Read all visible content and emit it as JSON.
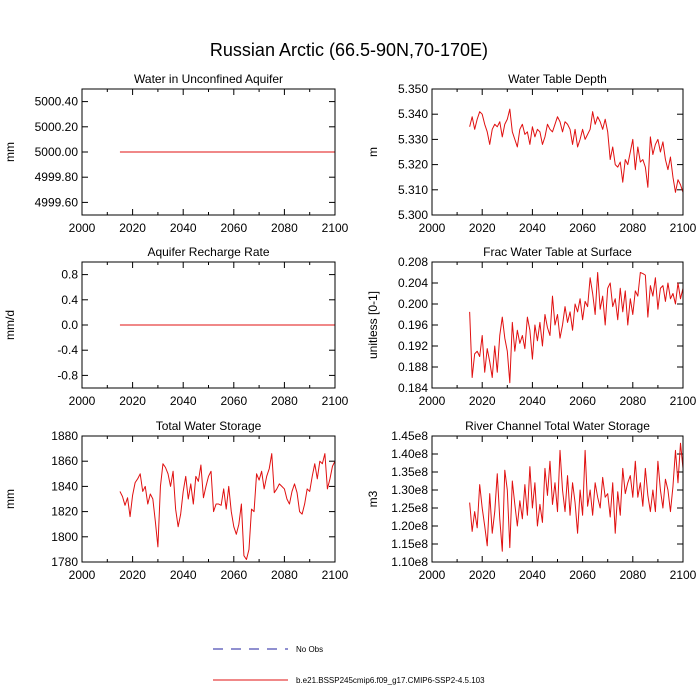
{
  "figure": {
    "title": "Russian Arctic (66.5-90N,70-170E)"
  },
  "legend": {
    "items": [
      {
        "label": "No Obs",
        "style": "dashed",
        "color": "#2020a0"
      },
      {
        "label": "b.e21.BSSP245cmip6.f09_g17.CMIP6-SSP2-4.5.103",
        "style": "solid",
        "color": "#e01010"
      }
    ]
  },
  "chart_data": [
    {
      "type": "line",
      "title": "Water in Unconfined Aquifer",
      "xlabel": "",
      "ylabel": "mm",
      "xlim": [
        2000,
        2100
      ],
      "ylim": [
        4999.5,
        5000.5
      ],
      "xticks": [
        2000,
        2020,
        2040,
        2060,
        2080,
        2100
      ],
      "yticks": [
        4999.6,
        4999.8,
        5000.0,
        5000.2,
        5000.4
      ],
      "ytick_labels": [
        "4999.60",
        "4999.80",
        "5000.00",
        "5000.20",
        "5000.40"
      ],
      "series": [
        {
          "name": "b.e21.BSSP245cmip6.f09_g17.CMIP6-SSP2-4.5.103",
          "color": "#e01010",
          "x_start": 2015,
          "x_step": 1,
          "y": [
            5000,
            5000,
            5000,
            5000,
            5000,
            5000,
            5000,
            5000,
            5000,
            5000,
            5000,
            5000,
            5000,
            5000,
            5000,
            5000,
            5000,
            5000,
            5000,
            5000,
            5000,
            5000,
            5000,
            5000,
            5000,
            5000,
            5000,
            5000,
            5000,
            5000,
            5000,
            5000,
            5000,
            5000,
            5000,
            5000,
            5000,
            5000,
            5000,
            5000,
            5000,
            5000,
            5000,
            5000,
            5000,
            5000,
            5000,
            5000,
            5000,
            5000,
            5000,
            5000,
            5000,
            5000,
            5000,
            5000,
            5000,
            5000,
            5000,
            5000,
            5000,
            5000,
            5000,
            5000,
            5000,
            5000,
            5000,
            5000,
            5000,
            5000,
            5000,
            5000,
            5000,
            5000,
            5000,
            5000,
            5000,
            5000,
            5000,
            5000,
            5000,
            5000,
            5000,
            5000,
            5000,
            5000
          ]
        }
      ]
    },
    {
      "type": "line",
      "title": "Water Table Depth",
      "xlabel": "",
      "ylabel": "m",
      "xlim": [
        2000,
        2100
      ],
      "ylim": [
        5.3,
        5.35
      ],
      "xticks": [
        2000,
        2020,
        2040,
        2060,
        2080,
        2100
      ],
      "yticks": [
        5.3,
        5.31,
        5.32,
        5.33,
        5.34,
        5.35
      ],
      "ytick_labels": [
        "5.300",
        "5.310",
        "5.320",
        "5.330",
        "5.340",
        "5.350"
      ],
      "series": [
        {
          "name": "b.e21.BSSP245cmip6.f09_g17.CMIP6-SSP2-4.5.103",
          "color": "#e01010",
          "x_start": 2015,
          "x_step": 1,
          "y": [
            5.335,
            5.339,
            5.334,
            5.338,
            5.341,
            5.34,
            5.336,
            5.333,
            5.328,
            5.334,
            5.336,
            5.335,
            5.337,
            5.331,
            5.336,
            5.338,
            5.342,
            5.333,
            5.33,
            5.327,
            5.334,
            5.336,
            5.332,
            5.333,
            5.328,
            5.335,
            5.331,
            5.334,
            5.333,
            5.328,
            5.331,
            5.336,
            5.334,
            5.333,
            5.336,
            5.339,
            5.337,
            5.333,
            5.337,
            5.336,
            5.334,
            5.328,
            5.334,
            5.327,
            5.33,
            5.334,
            5.33,
            5.332,
            5.334,
            5.341,
            5.336,
            5.339,
            5.337,
            5.334,
            5.338,
            5.333,
            5.322,
            5.327,
            5.32,
            5.319,
            5.321,
            5.313,
            5.322,
            5.32,
            5.325,
            5.33,
            5.318,
            5.327,
            5.321,
            5.322,
            5.319,
            5.311,
            5.331,
            5.324,
            5.328,
            5.33,
            5.325,
            5.329,
            5.322,
            5.318,
            5.323,
            5.315,
            5.309,
            5.314,
            5.312,
            5.309
          ]
        }
      ]
    },
    {
      "type": "line",
      "title": "Aquifer Recharge Rate",
      "xlabel": "",
      "ylabel": "mm/d",
      "xlim": [
        2000,
        2100
      ],
      "ylim": [
        -1.0,
        1.0
      ],
      "xticks": [
        2000,
        2020,
        2040,
        2060,
        2080,
        2100
      ],
      "yticks": [
        -0.8,
        -0.4,
        0.0,
        0.4,
        0.8
      ],
      "ytick_labels": [
        "-0.8",
        "-0.4",
        "0.0",
        "0.4",
        "0.8"
      ],
      "series": [
        {
          "name": "b.e21.BSSP245cmip6.f09_g17.CMIP6-SSP2-4.5.103",
          "color": "#e01010",
          "x_start": 2015,
          "x_step": 1,
          "y": [
            0,
            0,
            0,
            0,
            0,
            0,
            0,
            0,
            0,
            0,
            0,
            0,
            0,
            0,
            0,
            0,
            0,
            0,
            0,
            0,
            0,
            0,
            0,
            0,
            0,
            0,
            0,
            0,
            0,
            0,
            0,
            0,
            0,
            0,
            0,
            0,
            0,
            0,
            0,
            0,
            0,
            0,
            0,
            0,
            0,
            0,
            0,
            0,
            0,
            0,
            0,
            0,
            0,
            0,
            0,
            0,
            0,
            0,
            0,
            0,
            0,
            0,
            0,
            0,
            0,
            0,
            0,
            0,
            0,
            0,
            0,
            0,
            0,
            0,
            0,
            0,
            0,
            0,
            0,
            0,
            0,
            0,
            0,
            0,
            0,
            0
          ]
        }
      ]
    },
    {
      "type": "line",
      "title": "Frac Water Table at Surface",
      "xlabel": "",
      "ylabel": "unitless [0-1]",
      "xlim": [
        2000,
        2100
      ],
      "ylim": [
        0.184,
        0.208
      ],
      "xticks": [
        2000,
        2020,
        2040,
        2060,
        2080,
        2100
      ],
      "yticks": [
        0.184,
        0.188,
        0.192,
        0.196,
        0.2,
        0.204,
        0.208
      ],
      "ytick_labels": [
        "0.184",
        "0.188",
        "0.192",
        "0.196",
        "0.200",
        "0.204",
        "0.208"
      ],
      "series": [
        {
          "name": "b.e21.BSSP245cmip6.f09_g17.CMIP6-SSP2-4.5.103",
          "color": "#e01010",
          "x_start": 2015,
          "x_step": 1,
          "y": [
            0.1985,
            0.186,
            0.1905,
            0.191,
            0.19,
            0.194,
            0.187,
            0.1915,
            0.189,
            0.186,
            0.192,
            0.187,
            0.194,
            0.1975,
            0.1935,
            0.191,
            0.185,
            0.1965,
            0.191,
            0.195,
            0.1925,
            0.194,
            0.1915,
            0.1975,
            0.195,
            0.1895,
            0.196,
            0.193,
            0.1965,
            0.192,
            0.198,
            0.1955,
            0.194,
            0.2015,
            0.196,
            0.198,
            0.1935,
            0.196,
            0.1995,
            0.1965,
            0.1985,
            0.195,
            0.2,
            0.1985,
            0.201,
            0.197,
            0.2005,
            0.1995,
            0.205,
            0.202,
            0.198,
            0.206,
            0.199,
            0.2015,
            0.196,
            0.203,
            0.204,
            0.1995,
            0.201,
            0.197,
            0.203,
            0.1985,
            0.2025,
            0.196,
            0.201,
            0.198,
            0.2025,
            0.2015,
            0.206,
            0.2058,
            0.2055,
            0.1975,
            0.2035,
            0.2015,
            0.205,
            0.199,
            0.203,
            0.2035,
            0.2005,
            0.204,
            0.201,
            0.202,
            0.2,
            0.204,
            0.201,
            0.203
          ]
        }
      ]
    },
    {
      "type": "line",
      "title": "Total Water Storage",
      "xlabel": "",
      "ylabel": "mm",
      "xlim": [
        2000,
        2100
      ],
      "ylim": [
        1780,
        1880
      ],
      "xticks": [
        2000,
        2020,
        2040,
        2060,
        2080,
        2100
      ],
      "yticks": [
        1780,
        1800,
        1820,
        1840,
        1860,
        1880
      ],
      "ytick_labels": [
        "1780",
        "1800",
        "1820",
        "1840",
        "1860",
        "1880"
      ],
      "series": [
        {
          "name": "b.e21.BSSP245cmip6.f09_g17.CMIP6-SSP2-4.5.103",
          "color": "#e01010",
          "x_start": 2015,
          "x_step": 1,
          "y": [
            1836,
            1832,
            1825,
            1831,
            1816,
            1833,
            1843,
            1846,
            1850,
            1836,
            1840,
            1826,
            1834,
            1830,
            1812,
            1792,
            1840,
            1858,
            1855,
            1850,
            1840,
            1852,
            1822,
            1808,
            1818,
            1836,
            1848,
            1830,
            1842,
            1826,
            1848,
            1844,
            1857,
            1831,
            1840,
            1848,
            1852,
            1820,
            1826,
            1826,
            1825,
            1838,
            1822,
            1840,
            1820,
            1808,
            1802,
            1810,
            1826,
            1785,
            1782,
            1790,
            1822,
            1820,
            1850,
            1845,
            1852,
            1838,
            1848,
            1854,
            1866,
            1835,
            1838,
            1842,
            1840,
            1838,
            1830,
            1826,
            1836,
            1842,
            1835,
            1820,
            1818,
            1826,
            1838,
            1836,
            1848,
            1858,
            1846,
            1860,
            1858,
            1866,
            1838,
            1846,
            1856,
            1860
          ]
        }
      ]
    },
    {
      "type": "line",
      "title": "River Channel Total Water Storage",
      "xlabel": "",
      "ylabel": "m3",
      "xlim": [
        2000,
        2100
      ],
      "ylim": [
        110000000.0,
        145000000.0
      ],
      "xticks": [
        2000,
        2020,
        2040,
        2060,
        2080,
        2100
      ],
      "yticks": [
        110000000.0,
        115000000.0,
        120000000.0,
        125000000.0,
        130000000.0,
        135000000.0,
        140000000.0,
        145000000.0
      ],
      "ytick_labels": [
        "1.10e8",
        "1.15e8",
        "1.20e8",
        "1.25e8",
        "1.30e8",
        "1.35e8",
        "1.40e8",
        "1.45e8"
      ],
      "series": [
        {
          "name": "b.e21.BSSP245cmip6.f09_g17.CMIP6-SSP2-4.5.103",
          "color": "#e01010",
          "x_start": 2015,
          "x_step": 1,
          "y": [
            126500000.0,
            118500000.0,
            124000000.0,
            119500000.0,
            131500000.0,
            125000000.0,
            120000000.0,
            114500000.0,
            129000000.0,
            118000000.0,
            124000000.0,
            134500000.0,
            122000000.0,
            113000000.0,
            135500000.0,
            130000000.0,
            114000000.0,
            132500000.0,
            126000000.0,
            120000000.0,
            127000000.0,
            122000000.0,
            131500000.0,
            123000000.0,
            136500000.0,
            125000000.0,
            132000000.0,
            120000000.0,
            126000000.0,
            121000000.0,
            136000000.0,
            128500000.0,
            138000000.0,
            126000000.0,
            132000000.0,
            124000000.0,
            141000000.0,
            130000000.0,
            124000000.0,
            134000000.0,
            123000000.0,
            132000000.0,
            126500000.0,
            118000000.0,
            130000000.0,
            123000000.0,
            141000000.0,
            125500000.0,
            130000000.0,
            123000000.0,
            132000000.0,
            128000000.0,
            125000000.0,
            133500000.0,
            128000000.0,
            129000000.0,
            122500000.0,
            132000000.0,
            118000000.0,
            129500000.0,
            123000000.0,
            136000000.0,
            129000000.0,
            132000000.0,
            134000000.0,
            128000000.0,
            138000000.0,
            128000000.0,
            132000000.0,
            125500000.0,
            136000000.0,
            128500000.0,
            124000000.0,
            130000000.0,
            124000000.0,
            138000000.0,
            130000000.0,
            125000000.0,
            133000000.0,
            130000000.0,
            124000000.0,
            131000000.0,
            141000000.0,
            132000000.0,
            143000000.0,
            136000000.0
          ]
        }
      ]
    }
  ]
}
